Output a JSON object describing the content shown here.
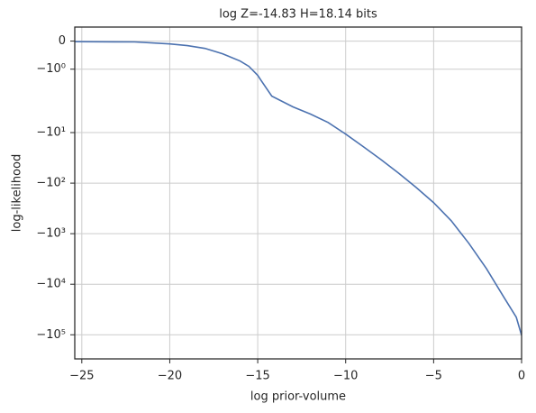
{
  "chart_data": {
    "type": "line",
    "title": "log Z=-14.83 H=18.14 bits",
    "xlabel": "log prior-volume",
    "ylabel": "log-likelihood",
    "yscale": "symlog",
    "linthresh": 2,
    "grid": true,
    "xlim": [
      -25.4,
      0
    ],
    "ylim": [
      -300000,
      0.5
    ],
    "xticks": [
      {
        "value": -25,
        "label": "−25"
      },
      {
        "value": -20,
        "label": "−20"
      },
      {
        "value": -15,
        "label": "−15"
      },
      {
        "value": -10,
        "label": "−10"
      },
      {
        "value": -5,
        "label": "−5"
      },
      0
    ],
    "yticks": [
      0,
      {
        "value": -1,
        "label": "−10⁰"
      },
      {
        "value": -10,
        "label": "−10¹"
      },
      {
        "value": -100,
        "label": "−10²"
      },
      {
        "value": -1000,
        "label": "−10³"
      },
      {
        "value": -10000,
        "label": "−10⁴"
      },
      {
        "value": -100000,
        "label": "−10⁵"
      }
    ],
    "series": [
      {
        "color": "#4c72b0",
        "x": [
          -25.4,
          -22,
          -20,
          -19,
          -18,
          -17,
          -16,
          -15.5,
          -15,
          -14.8,
          -14.2,
          -13,
          -12,
          -11,
          -10,
          -9,
          -8,
          -7,
          -6,
          -5,
          -4,
          -3,
          -2,
          -1,
          -0.3,
          0
        ],
        "values": [
          -0.02,
          -0.03,
          -0.1,
          -0.16,
          -0.26,
          -0.45,
          -0.71,
          -0.9,
          -1.22,
          -1.41,
          -1.96,
          -3.1,
          -4.3,
          -6.3,
          -10.7,
          -19,
          -34,
          -63,
          -121,
          -243,
          -555,
          -1550,
          -4900,
          -18200,
          -45100,
          -102600
        ]
      }
    ]
  }
}
